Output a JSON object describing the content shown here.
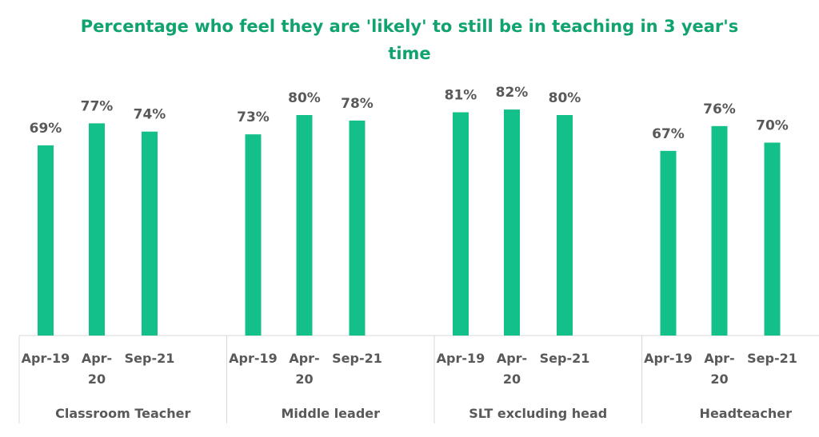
{
  "colors": {
    "bar": "#14c08a",
    "title": "#10a36e",
    "label": "#595959",
    "axis": "#d9d9d9"
  },
  "chart_data": {
    "type": "bar",
    "title_lines": [
      "Percentage who feel they are 'likely' to still be in teaching in 3 year's",
      "time"
    ],
    "ylim": [
      0,
      100
    ],
    "grid": false,
    "legend": "none",
    "groups": [
      {
        "name": "Classroom Teacher",
        "categories": [
          [
            "Apr-19"
          ],
          [
            "Apr-",
            "20"
          ],
          [
            "Sep-21"
          ]
        ],
        "values": [
          69,
          77,
          74
        ],
        "labels": [
          "69%",
          "77%",
          "74%"
        ]
      },
      {
        "name": "Middle leader",
        "categories": [
          [
            "Apr-19"
          ],
          [
            "Apr-",
            "20"
          ],
          [
            "Sep-21"
          ]
        ],
        "values": [
          73,
          80,
          78
        ],
        "labels": [
          "73%",
          "80%",
          "78%"
        ]
      },
      {
        "name": "SLT excluding head",
        "categories": [
          [
            "Apr-19"
          ],
          [
            "Apr-",
            "20"
          ],
          [
            "Sep-21"
          ]
        ],
        "values": [
          81,
          82,
          80
        ],
        "labels": [
          "81%",
          "82%",
          "80%"
        ]
      },
      {
        "name": "Headteacher",
        "categories": [
          [
            "Apr-19"
          ],
          [
            "Apr-",
            "20"
          ],
          [
            "Sep-21"
          ]
        ],
        "values": [
          67,
          76,
          70
        ],
        "labels": [
          "67%",
          "76%",
          "70%"
        ]
      }
    ]
  }
}
